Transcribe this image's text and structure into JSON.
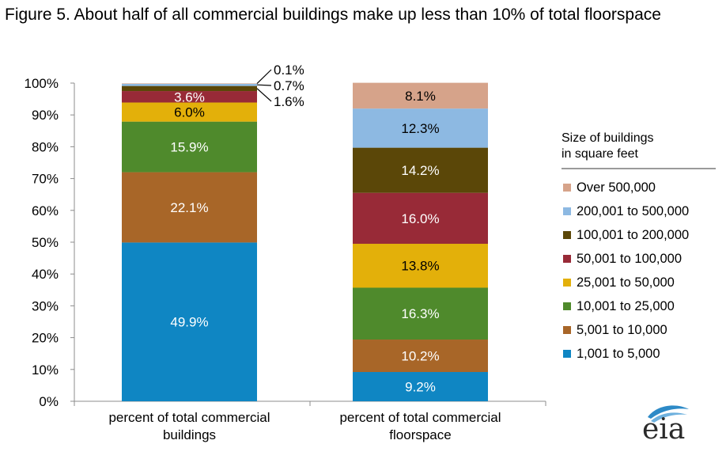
{
  "title": "Figure 5. About half of all commercial buildings make up less than 10% of total floorspace",
  "legend": {
    "title_line1": "Size of buildings",
    "title_line2": "in square feet",
    "placement": "right"
  },
  "logo": {
    "text": "eia",
    "icon": "eia-logo-icon"
  },
  "chart_data": {
    "type": "stacked-bar",
    "ylim": [
      0,
      100
    ],
    "yticks": [
      "0%",
      "10%",
      "20%",
      "30%",
      "40%",
      "50%",
      "60%",
      "70%",
      "80%",
      "90%",
      "100%"
    ],
    "categories": [
      [
        "percent of total commercial",
        "buildings"
      ],
      [
        "percent of total commercial",
        "floorspace"
      ]
    ],
    "series": [
      {
        "name": "1,001 to 5,000",
        "color": "#0f86c3",
        "values": [
          49.9,
          9.2
        ],
        "labels": [
          "49.9%",
          "9.2%"
        ]
      },
      {
        "name": "5,001 to 10,000",
        "color": "#a86628",
        "values": [
          22.1,
          10.2
        ],
        "labels": [
          "22.1%",
          "10.2%"
        ]
      },
      {
        "name": "10,001 to 25,000",
        "color": "#4f8a2c",
        "values": [
          15.9,
          16.3
        ],
        "labels": [
          "15.9%",
          "16.3%"
        ]
      },
      {
        "name": "25,001 to 50,000",
        "color": "#e3b00a",
        "values": [
          6.0,
          13.8
        ],
        "labels": [
          "6.0%",
          "13.8%"
        ]
      },
      {
        "name": "50,001 to 100,000",
        "color": "#982a37",
        "values": [
          3.6,
          16.0
        ],
        "labels": [
          "3.6%",
          "16.0%"
        ]
      },
      {
        "name": "100,001 to 200,000",
        "color": "#5b4708",
        "values": [
          1.6,
          14.2
        ],
        "labels": [
          "1.6%",
          "14.2%"
        ]
      },
      {
        "name": "200,001 to 500,000",
        "color": "#8db9e2",
        "values": [
          0.7,
          12.3
        ],
        "labels": [
          "0.7%",
          "12.3%"
        ]
      },
      {
        "name": "Over 500,000",
        "color": "#d6a38a",
        "values": [
          0.1,
          8.1
        ],
        "labels": [
          "0.1%",
          "8.1%"
        ]
      }
    ]
  }
}
